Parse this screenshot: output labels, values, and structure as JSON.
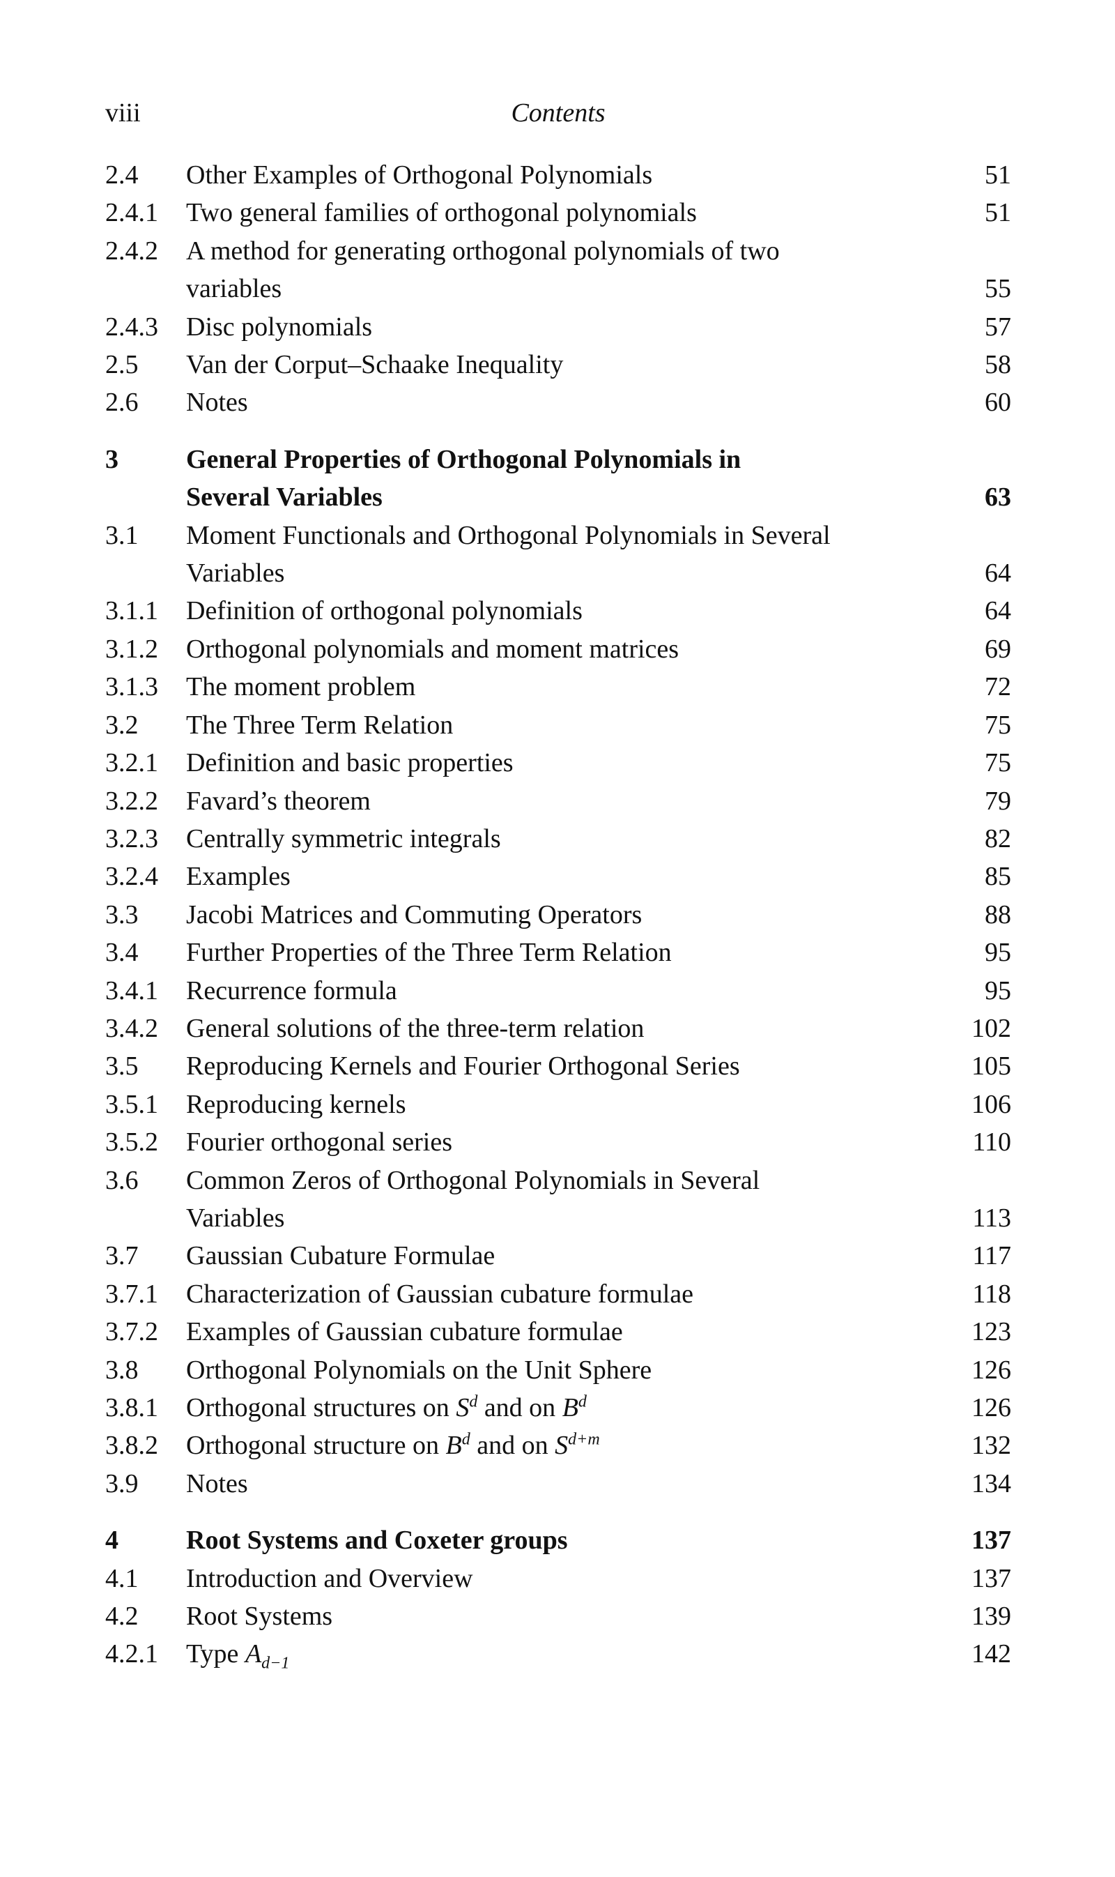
{
  "header": {
    "page_number": "viii",
    "running_title": "Contents"
  },
  "entries": [
    {
      "num": "2.4",
      "lines": [
        [
          "Other Examples of Orthogonal Polynomials"
        ]
      ],
      "page": "51"
    },
    {
      "num": "2.4.1",
      "lines": [
        [
          "Two general families of orthogonal polynomials"
        ]
      ],
      "page": "51"
    },
    {
      "num": "2.4.2",
      "lines": [
        [
          "A method for generating orthogonal polynomials of two"
        ],
        [
          "variables"
        ]
      ],
      "page": "55"
    },
    {
      "num": "2.4.3",
      "lines": [
        [
          "Disc polynomials"
        ]
      ],
      "page": "57"
    },
    {
      "num": "2.5",
      "lines": [
        [
          "Van der Corput–Schaake Inequality"
        ]
      ],
      "page": "58"
    },
    {
      "num": "2.6",
      "lines": [
        [
          "Notes"
        ]
      ],
      "page": "60"
    },
    {
      "num": "3",
      "chapter": true,
      "lines": [
        [
          "General Properties of Orthogonal Polynomials in"
        ],
        [
          "Several Variables"
        ]
      ],
      "page": "63"
    },
    {
      "num": "3.1",
      "lines": [
        [
          "Moment Functionals and Orthogonal Polynomials in Several"
        ],
        [
          "Variables"
        ]
      ],
      "page": "64"
    },
    {
      "num": "3.1.1",
      "lines": [
        [
          "Definition of orthogonal polynomials"
        ]
      ],
      "page": "64"
    },
    {
      "num": "3.1.2",
      "lines": [
        [
          "Orthogonal polynomials and moment matrices"
        ]
      ],
      "page": "69"
    },
    {
      "num": "3.1.3",
      "lines": [
        [
          "The moment problem"
        ]
      ],
      "page": "72"
    },
    {
      "num": "3.2",
      "lines": [
        [
          "The Three Term Relation"
        ]
      ],
      "page": "75"
    },
    {
      "num": "3.2.1",
      "lines": [
        [
          "Definition and basic properties"
        ]
      ],
      "page": "75"
    },
    {
      "num": "3.2.2",
      "lines": [
        [
          "Favard’s theorem"
        ]
      ],
      "page": "79"
    },
    {
      "num": "3.2.3",
      "lines": [
        [
          "Centrally symmetric integrals"
        ]
      ],
      "page": "82"
    },
    {
      "num": "3.2.4",
      "lines": [
        [
          "Examples"
        ]
      ],
      "page": "85"
    },
    {
      "num": "3.3",
      "lines": [
        [
          "Jacobi Matrices and Commuting Operators"
        ]
      ],
      "page": "88"
    },
    {
      "num": "3.4",
      "lines": [
        [
          "Further Properties of the Three Term Relation"
        ]
      ],
      "page": "95"
    },
    {
      "num": "3.4.1",
      "lines": [
        [
          "Recurrence formula"
        ]
      ],
      "page": "95"
    },
    {
      "num": "3.4.2",
      "lines": [
        [
          "General solutions of the three-term relation"
        ]
      ],
      "page": "102"
    },
    {
      "num": "3.5",
      "lines": [
        [
          "Reproducing Kernels and Fourier Orthogonal Series"
        ]
      ],
      "page": "105"
    },
    {
      "num": "3.5.1",
      "lines": [
        [
          "Reproducing kernels"
        ]
      ],
      "page": "106"
    },
    {
      "num": "3.5.2",
      "lines": [
        [
          "Fourier orthogonal series"
        ]
      ],
      "page": "110"
    },
    {
      "num": "3.6",
      "lines": [
        [
          "Common Zeros of Orthogonal Polynomials in Several"
        ],
        [
          "Variables"
        ]
      ],
      "page": "113"
    },
    {
      "num": "3.7",
      "lines": [
        [
          "Gaussian Cubature Formulae"
        ]
      ],
      "page": "117"
    },
    {
      "num": "3.7.1",
      "lines": [
        [
          "Characterization of Gaussian cubature formulae"
        ]
      ],
      "page": "118"
    },
    {
      "num": "3.7.2",
      "lines": [
        [
          "Examples of Gaussian cubature formulae"
        ]
      ],
      "page": "123"
    },
    {
      "num": "3.8",
      "lines": [
        [
          "Orthogonal Polynomials on the Unit Sphere"
        ]
      ],
      "page": "126"
    },
    {
      "num": "3.8.1",
      "lines": [
        [
          "Orthogonal structures on ",
          {
            "i": "S",
            "sup": "d"
          },
          " and on ",
          {
            "i": "B",
            "sup": "d"
          }
        ]
      ],
      "page": "126"
    },
    {
      "num": "3.8.2",
      "lines": [
        [
          "Orthogonal structure on ",
          {
            "i": "B",
            "sup": "d"
          },
          " and on ",
          {
            "i": "S",
            "sup": "d+m"
          }
        ]
      ],
      "page": "132"
    },
    {
      "num": "3.9",
      "lines": [
        [
          "Notes"
        ]
      ],
      "page": "134"
    },
    {
      "num": "4",
      "chapter": true,
      "lines": [
        [
          "Root Systems and Coxeter groups"
        ]
      ],
      "page": "137"
    },
    {
      "num": "4.1",
      "lines": [
        [
          "Introduction and Overview"
        ]
      ],
      "page": "137"
    },
    {
      "num": "4.2",
      "lines": [
        [
          "Root Systems"
        ]
      ],
      "page": "139"
    },
    {
      "num": "4.2.1",
      "lines": [
        [
          "Type ",
          {
            "i": "A",
            "sub": "d−1"
          }
        ]
      ],
      "page": "142"
    }
  ]
}
